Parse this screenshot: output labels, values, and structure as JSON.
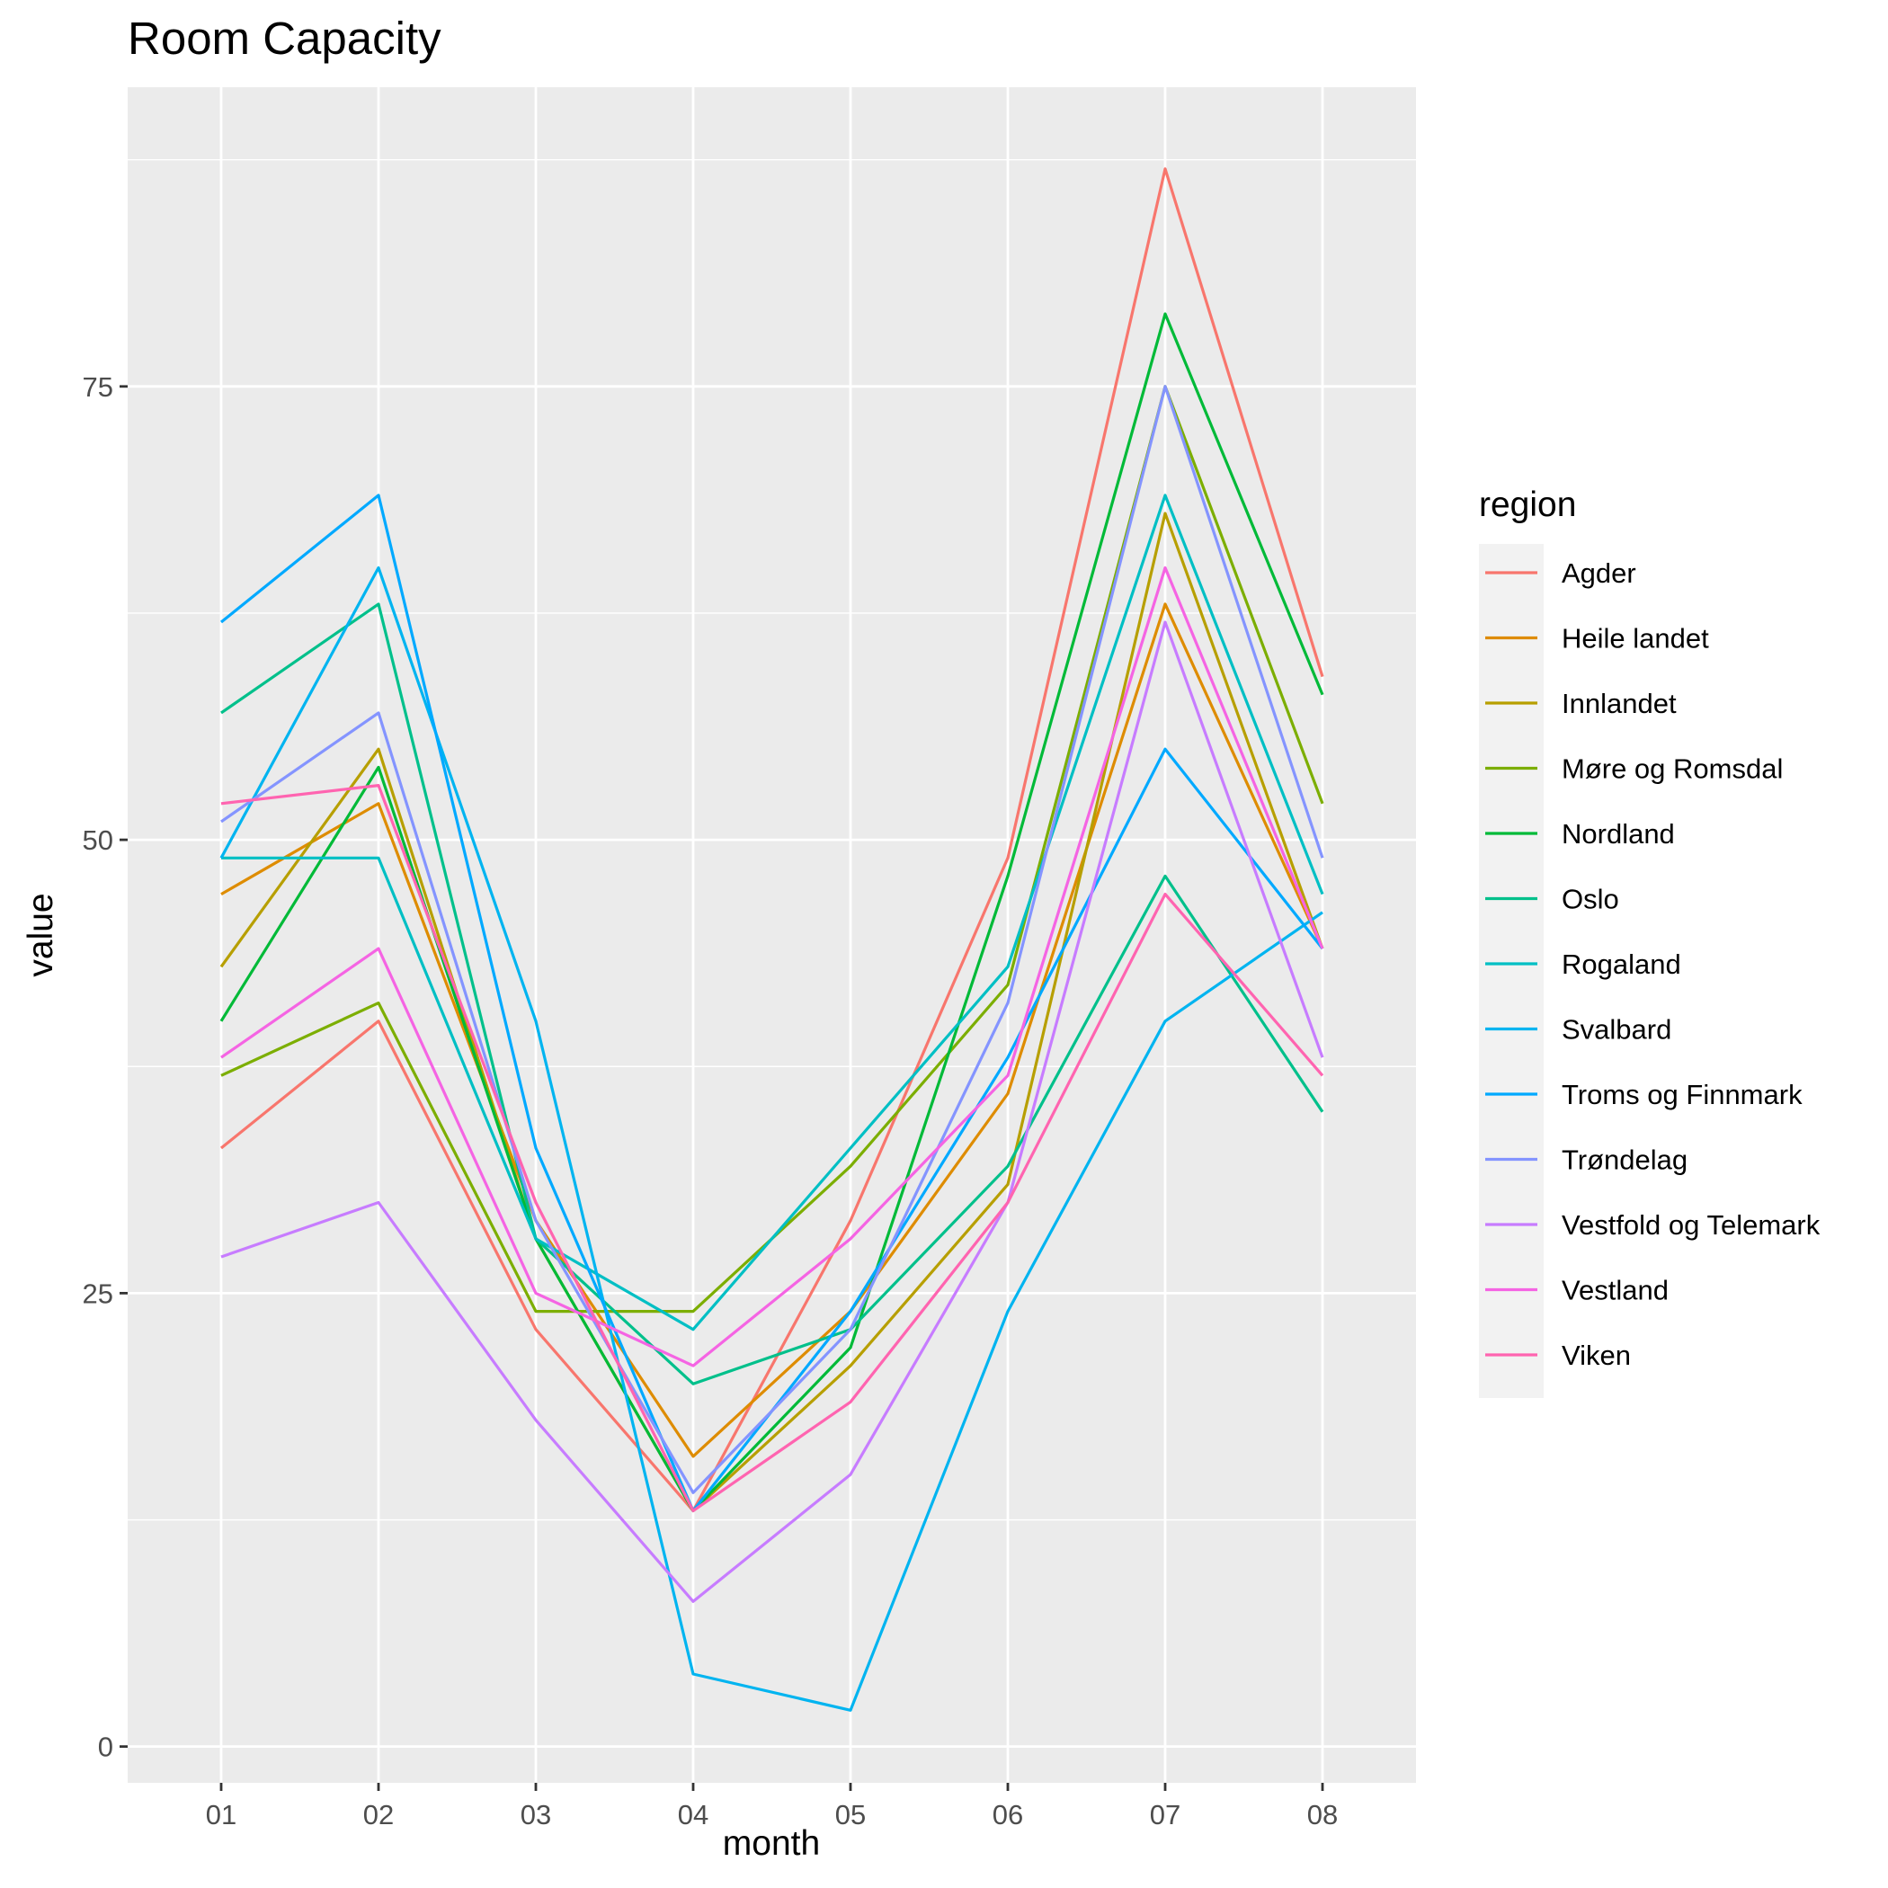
{
  "chart_data": {
    "type": "line",
    "title": "Room Capacity",
    "xlabel": "month",
    "ylabel": "value",
    "categories": [
      "01",
      "02",
      "03",
      "04",
      "05",
      "06",
      "07",
      "08"
    ],
    "y_ticks": [
      0,
      25,
      50,
      75
    ],
    "ylim": [
      -2,
      91.5
    ],
    "grid": true,
    "legend": {
      "title": "region",
      "position": "right"
    },
    "series": [
      {
        "name": "Agder",
        "color": "#F8766D",
        "values": [
          33,
          40,
          23,
          13,
          29,
          49,
          87,
          59
        ]
      },
      {
        "name": "Heile landet",
        "color": "#DE8C00",
        "values": [
          47,
          52,
          29,
          16,
          24,
          36,
          63,
          44
        ]
      },
      {
        "name": "Innlandet",
        "color": "#B79F00",
        "values": [
          43,
          55,
          28,
          13,
          21,
          31,
          68,
          44
        ]
      },
      {
        "name": "Møre og Romsdal",
        "color": "#7CAE00",
        "values": [
          37,
          41,
          24,
          24,
          32,
          42,
          75,
          52
        ]
      },
      {
        "name": "Nordland",
        "color": "#00BA38",
        "values": [
          40,
          54,
          28,
          13,
          22,
          48,
          79,
          58
        ]
      },
      {
        "name": "Oslo",
        "color": "#00C08B",
        "values": [
          57,
          63,
          28,
          20,
          23,
          32,
          48,
          35
        ]
      },
      {
        "name": "Rogaland",
        "color": "#00BFC4",
        "values": [
          49,
          49,
          28,
          23,
          33,
          43,
          69,
          47
        ]
      },
      {
        "name": "Svalbard",
        "color": "#00B4F0",
        "values": [
          49,
          65,
          40,
          4,
          2,
          24,
          40,
          46
        ]
      },
      {
        "name": "Troms og Finnmark",
        "color": "#00A9FF",
        "values": [
          62,
          69,
          33,
          13,
          24,
          38,
          55,
          44
        ]
      },
      {
        "name": "Trøndelag",
        "color": "#8494FF",
        "values": [
          51,
          57,
          29,
          14,
          23,
          41,
          75,
          49
        ]
      },
      {
        "name": "Vestfold og Telemark",
        "color": "#C77CFF",
        "values": [
          27,
          30,
          18,
          8,
          15,
          30,
          62,
          38
        ]
      },
      {
        "name": "Vestland",
        "color": "#F564E3",
        "values": [
          38,
          44,
          25,
          21,
          28,
          37,
          65,
          44
        ]
      },
      {
        "name": "Viken",
        "color": "#FF64B0",
        "values": [
          52,
          53,
          30,
          13,
          19,
          30,
          47,
          37
        ]
      }
    ]
  }
}
